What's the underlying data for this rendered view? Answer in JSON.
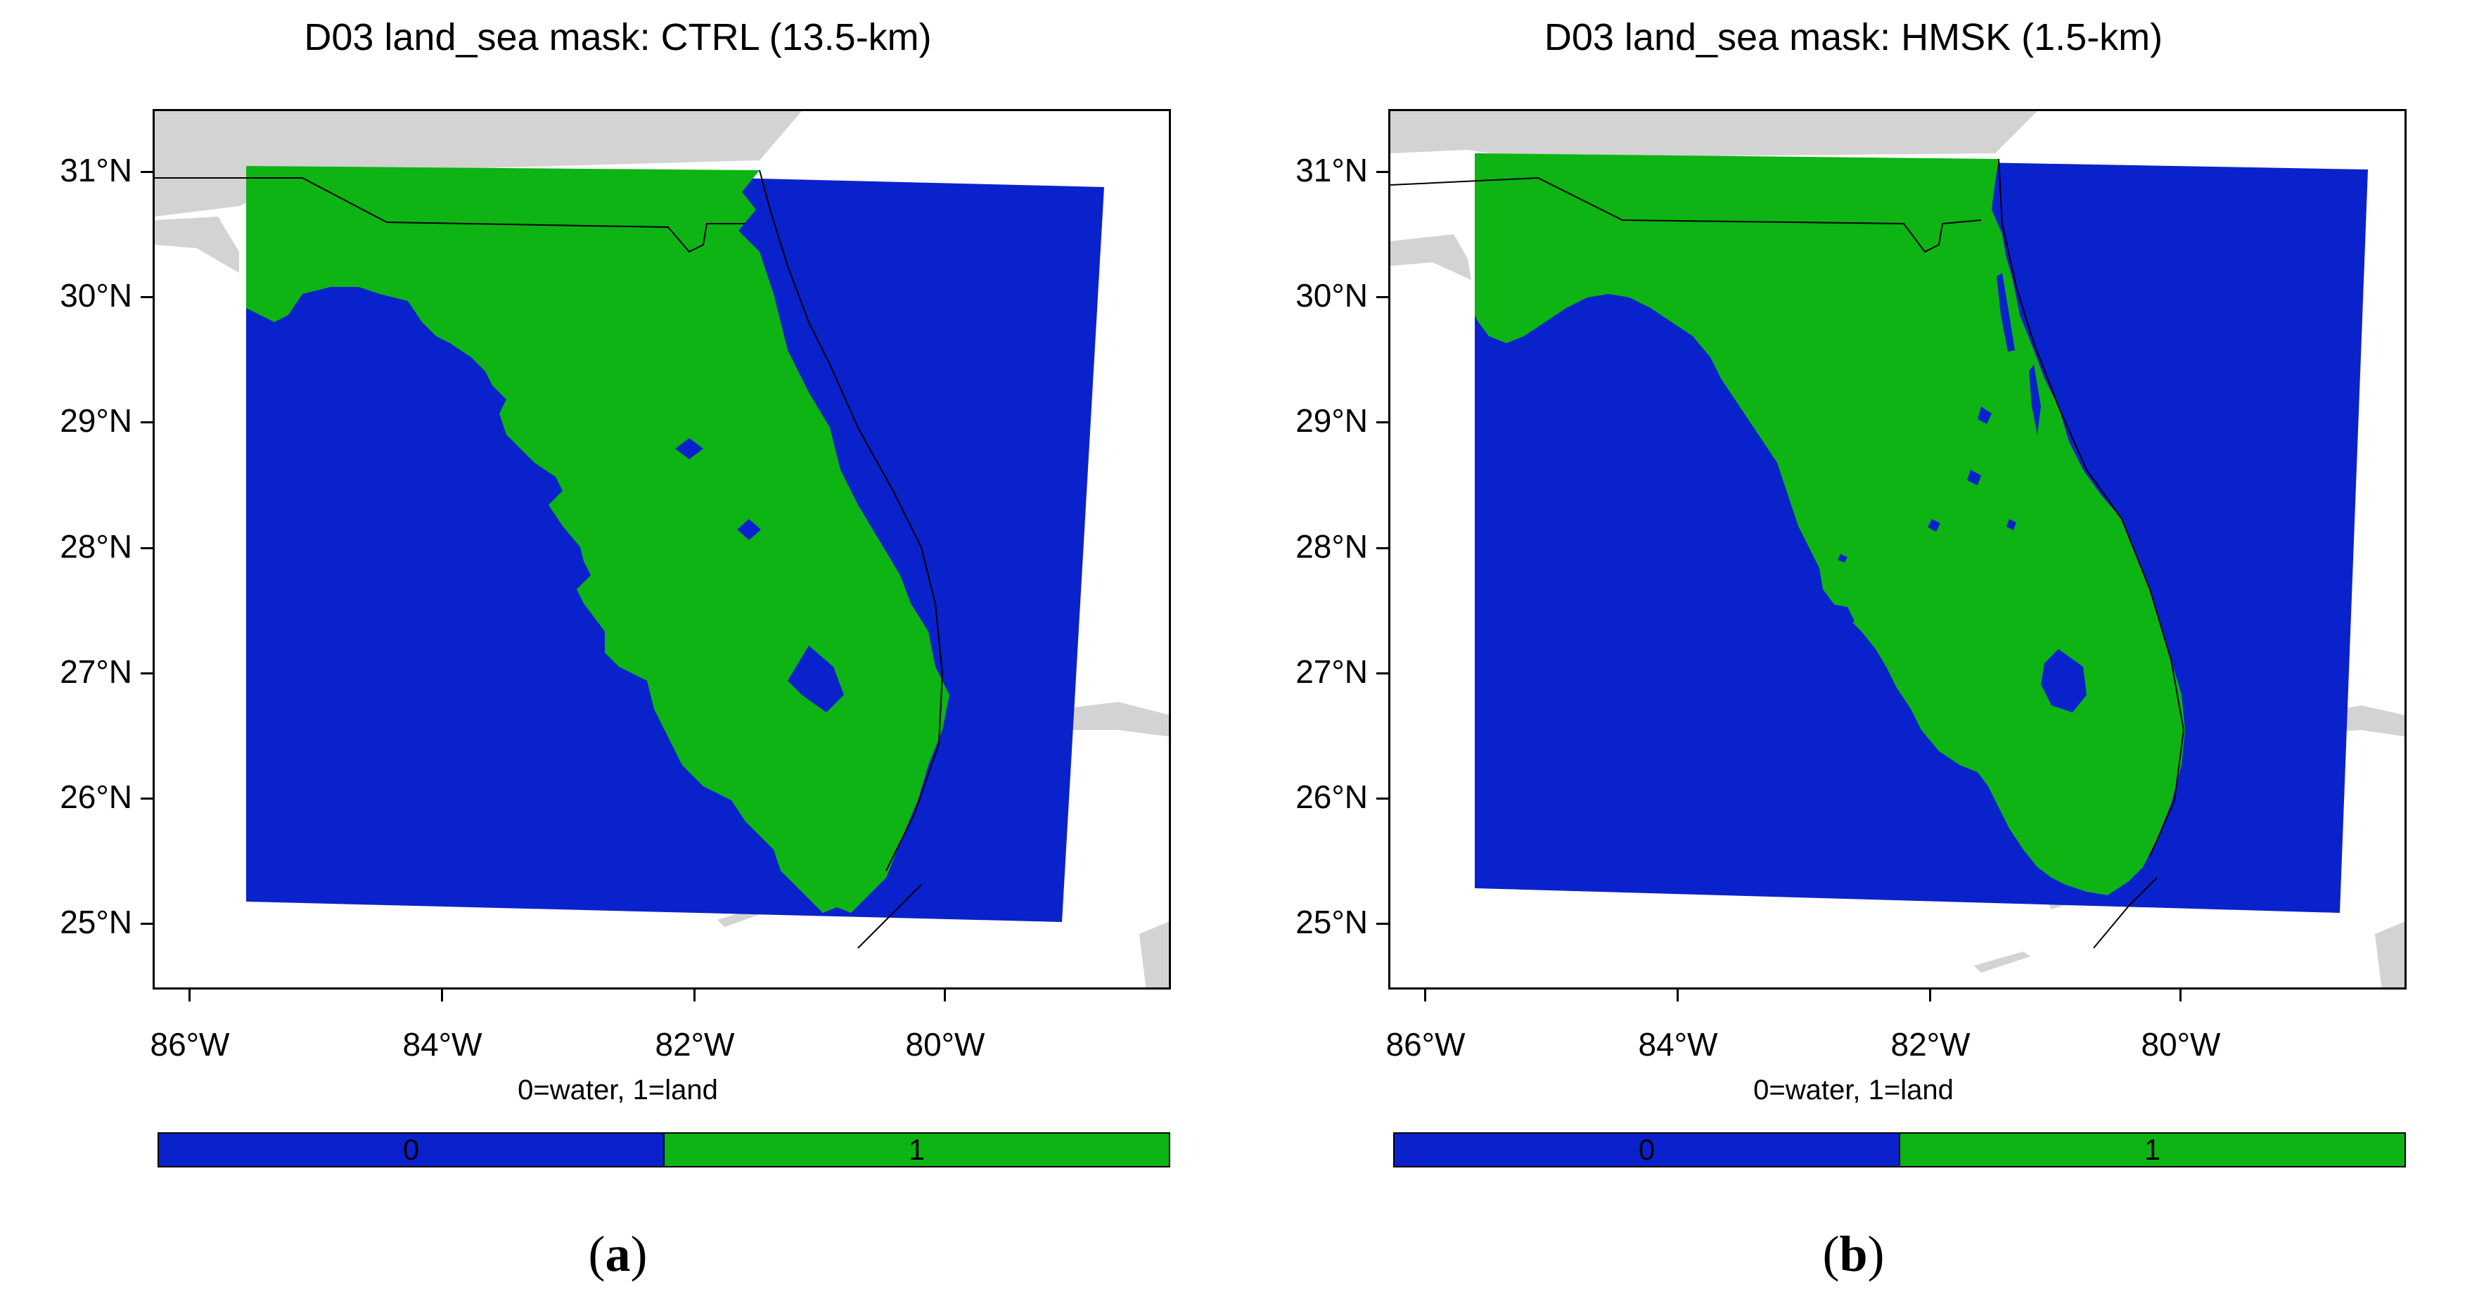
{
  "colors": {
    "water": "#0a22cc",
    "land": "#0eb414",
    "outside_land": "#d3d3d3",
    "outside_water": "#ffffff"
  },
  "y_axis_labels": [
    "31°N",
    "30°N",
    "29°N",
    "28°N",
    "27°N",
    "26°N",
    "25°N"
  ],
  "x_axis_labels": [
    "86°W",
    "84°W",
    "82°W",
    "80°W"
  ],
  "colorbar_title": "0=water, 1=land",
  "colorbar_values": [
    "0",
    "1"
  ],
  "panels": [
    {
      "title": "D03 land_sea mask: CTRL (13.5-km)",
      "label_open": "(",
      "label_letter": "a",
      "label_close": ")",
      "resolution_km": 13.5,
      "colorbar": {
        "low": "0",
        "high": "1"
      }
    },
    {
      "title": "D03 land_sea mask: HMSK (1.5-km)",
      "label_open": "(",
      "label_letter": "b",
      "label_close": ")",
      "resolution_km": 1.5,
      "colorbar": {
        "low": "0",
        "high": "1"
      }
    }
  ]
}
